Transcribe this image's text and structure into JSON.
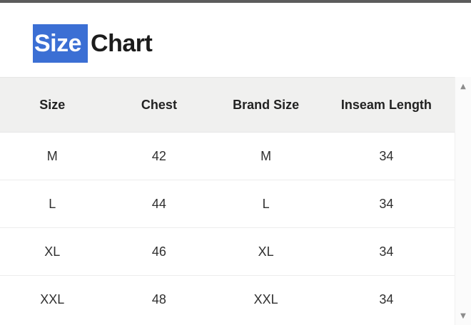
{
  "title": {
    "selected_text": "Size",
    "rest_text": "Chart"
  },
  "size_table": {
    "headers": [
      "Size",
      "Chest",
      "Brand Size",
      "Inseam Length"
    ],
    "rows": [
      [
        "M",
        "42",
        "M",
        "34"
      ],
      [
        "L",
        "44",
        "L",
        "34"
      ],
      [
        "XL",
        "46",
        "XL",
        "34"
      ],
      [
        "XXL",
        "48",
        "XXL",
        "34"
      ]
    ]
  },
  "scrollbar": {
    "up_arrow": "▲",
    "down_arrow": "▼"
  },
  "colors": {
    "selection_blue": "#3b6fd4",
    "selection_text": "#ffffff",
    "top_bar": "#5c5c5c",
    "header_bg": "#f0f0ef",
    "row_divider": "#ededed",
    "title_text": "#1c1c1c",
    "cell_text": "#2f2f2f",
    "scroll_arrow": "#8c8c8c"
  }
}
